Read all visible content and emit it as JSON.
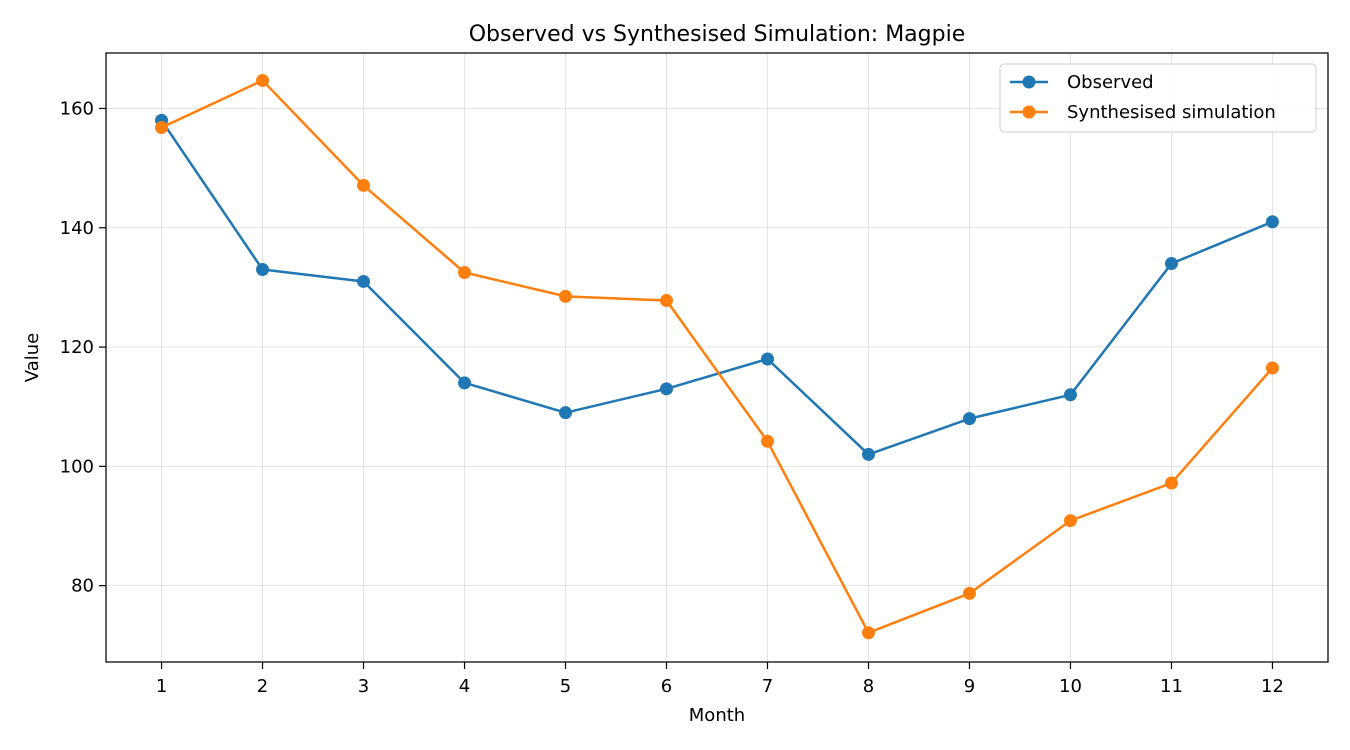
{
  "chart_data": {
    "type": "line",
    "title": "Observed vs Synthesised Simulation: Magpie",
    "xlabel": "Month",
    "ylabel": "Value",
    "x": [
      1,
      2,
      3,
      4,
      5,
      6,
      7,
      8,
      9,
      10,
      11,
      12
    ],
    "xlim": [
      0.45,
      12.55
    ],
    "ylim": [
      67.2,
      169.3
    ],
    "yticks": [
      80,
      100,
      120,
      140,
      160
    ],
    "grid": true,
    "legend_position": "top-right",
    "series": [
      {
        "name": "Observed",
        "color": "#1f77b4",
        "values": [
          158,
          133,
          131,
          114,
          109,
          113,
          118,
          102,
          108,
          112,
          134,
          141
        ]
      },
      {
        "name": "Synthesised simulation",
        "color": "#ff7f0e",
        "values": [
          156.8,
          164.7,
          147.1,
          132.5,
          128.5,
          127.8,
          104.2,
          72.1,
          78.7,
          90.9,
          97.2,
          116.5
        ]
      }
    ]
  }
}
